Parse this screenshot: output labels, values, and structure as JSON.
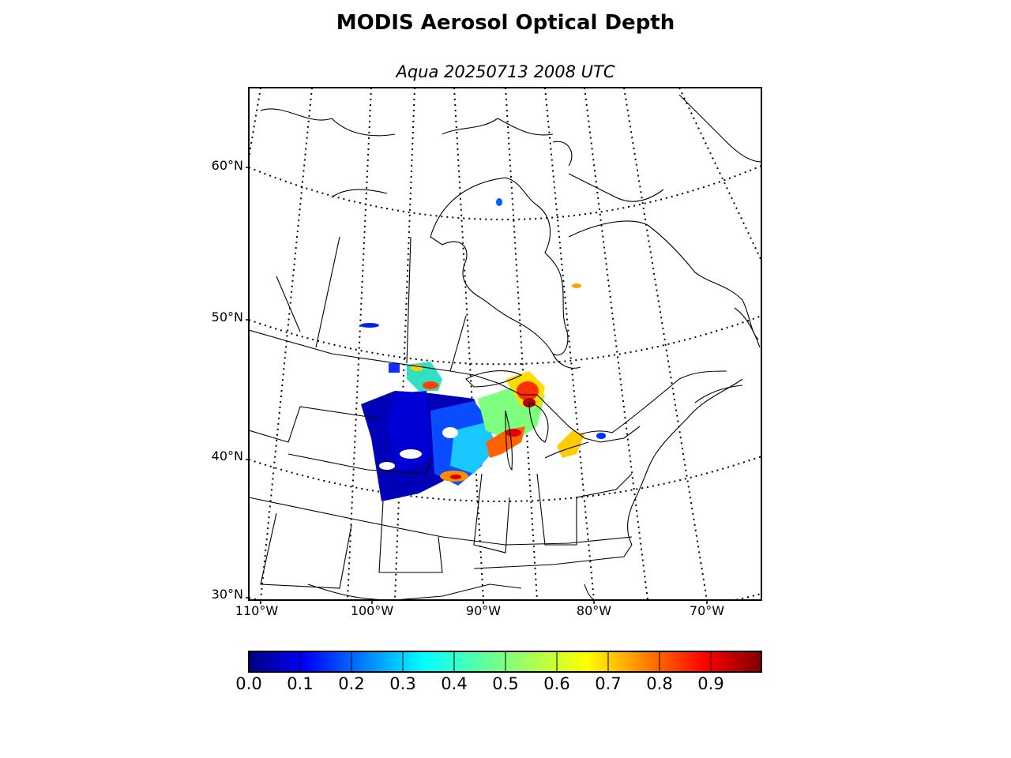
{
  "title": "MODIS Aerosol Optical Depth",
  "subtitle": "Aqua 20250713 2008 UTC",
  "lat_labels": [
    "60°N",
    "50°N",
    "40°N",
    "30°N"
  ],
  "lon_labels": [
    "110°W",
    "100°W",
    "90°W",
    "80°W",
    "70°W"
  ],
  "colorbar": {
    "ticks": [
      "0.0",
      "0.1",
      "0.2",
      "0.3",
      "0.4",
      "0.5",
      "0.6",
      "0.7",
      "0.8",
      "0.9"
    ],
    "range": [
      0.0,
      1.0
    ],
    "colormap": "jet",
    "colors": [
      "#00007f",
      "#0000ff",
      "#007fff",
      "#00ffff",
      "#7fff7f",
      "#ffff00",
      "#ff7f00",
      "#ff0000",
      "#7f0000"
    ]
  }
}
